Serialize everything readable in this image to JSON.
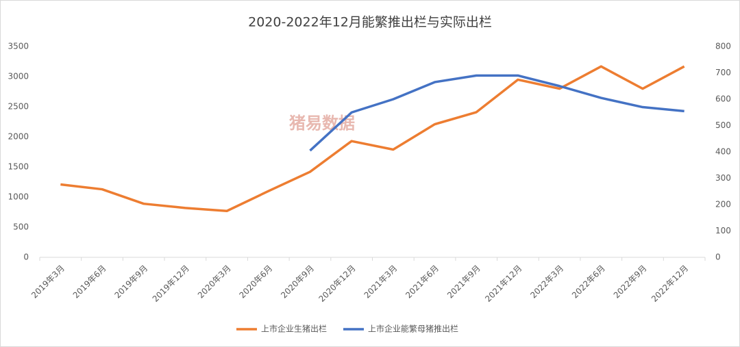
{
  "chart_data": {
    "type": "line",
    "title": "2020-2022年12月能繁推出栏与实际出栏",
    "watermark": "猪易数据",
    "categories": [
      "2019年3月",
      "2019年6月",
      "2019年9月",
      "2019年12月",
      "2020年3月",
      "2020年6月",
      "2020年9月",
      "2020年12月",
      "2021年3月",
      "2021年6月",
      "2021年9月",
      "2021年12月",
      "2022年3月",
      "2022年6月",
      "2022年9月",
      "2022年12月"
    ],
    "series": [
      {
        "name": "上市企业生猪出栏",
        "color": "#ed7d31",
        "values": [
          1210,
          1130,
          890,
          820,
          770,
          1100,
          1420,
          1930,
          1790,
          2210,
          2410,
          2950,
          2800,
          3170,
          2800,
          3170
        ]
      },
      {
        "name": "上市企业能繁母猪推出栏",
        "color": "#4472c4",
        "axis": "y2",
        "values": [
          null,
          null,
          null,
          null,
          null,
          null,
          405,
          550,
          600,
          665,
          690,
          690,
          650,
          605,
          570,
          555
        ]
      }
    ],
    "ylim": [
      0,
      3500
    ],
    "yticks": [
      0,
      500,
      1000,
      1500,
      2000,
      2500,
      3000,
      3500
    ],
    "y2lim": [
      0,
      800
    ],
    "y2ticks": [
      0,
      100,
      200,
      300,
      400,
      500,
      600,
      700,
      800
    ],
    "legend": "bottom"
  }
}
